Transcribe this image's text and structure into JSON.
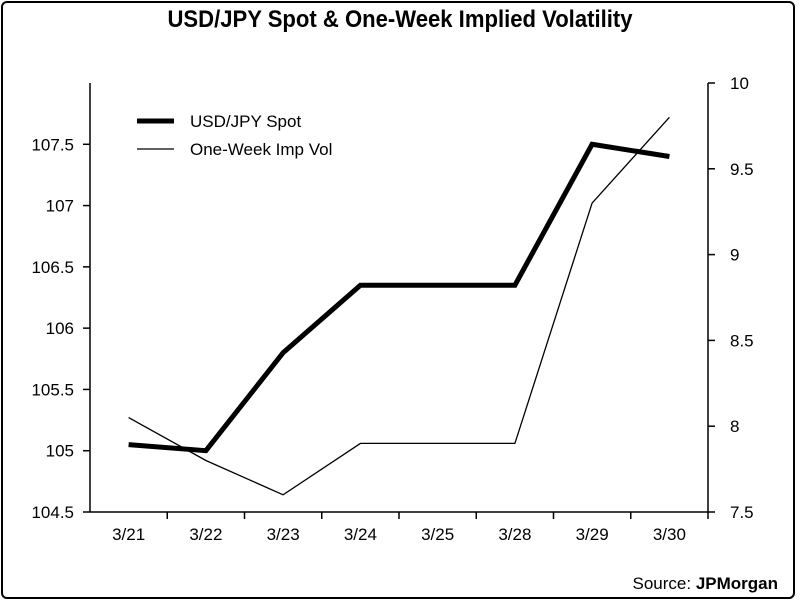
{
  "title": "USD/JPY Spot & One-Week Implied Volatility",
  "source": {
    "prefix": "Source:",
    "name": "JPMorgan"
  },
  "chart_data": {
    "type": "line",
    "categories": [
      "3/21",
      "3/22",
      "3/23",
      "3/24",
      "3/25",
      "3/28",
      "3/29",
      "3/30"
    ],
    "series": [
      {
        "name": "USD/JPY Spot",
        "axis": "left",
        "line": "thick",
        "values": [
          105.05,
          105.0,
          105.8,
          106.35,
          106.35,
          106.35,
          107.5,
          107.4
        ]
      },
      {
        "name": "One-Week Imp Vol",
        "axis": "right",
        "line": "thin",
        "values": [
          8.05,
          7.8,
          7.6,
          7.9,
          7.9,
          7.9,
          9.3,
          9.8
        ]
      }
    ],
    "y_left": {
      "ylim": [
        104.5,
        108.0
      ],
      "ticks": [
        "104.5",
        "105",
        "105.5",
        "106",
        "106.5",
        "107",
        "107.5"
      ]
    },
    "y_right": {
      "ylim": [
        7.5,
        10.0
      ],
      "ticks": [
        "7.5",
        "8",
        "8.5",
        "9",
        "9.5",
        "10"
      ]
    },
    "legend_position": "top-left",
    "grid": false
  }
}
